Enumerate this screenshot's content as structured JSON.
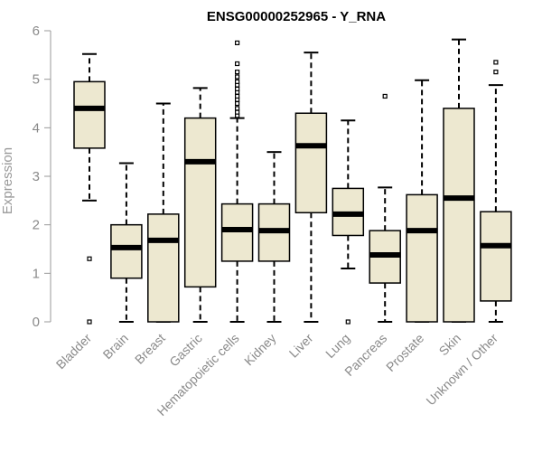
{
  "chart_data": {
    "type": "boxplot",
    "title": "ENSG00000252965 - Y_RNA",
    "xlabel": "",
    "ylabel": "Expression",
    "ylim": [
      0,
      6
    ],
    "yticks": [
      0,
      1,
      2,
      3,
      4,
      5,
      6
    ],
    "grid": false,
    "box_fill": "#ede8d0",
    "box_stroke": "#000000",
    "axis_color": "#999999",
    "categories": [
      "Bladder",
      "Brain",
      "Breast",
      "Gastric",
      "Hematopoietic cells",
      "Kidney",
      "Liver",
      "Lung",
      "Pancreas",
      "Prostate",
      "Skin",
      "Unknown / Other"
    ],
    "boxes": [
      {
        "min": 2.5,
        "q1": 3.58,
        "median": 4.4,
        "q3": 4.95,
        "max": 5.52,
        "outliers": [
          1.3,
          0.0
        ]
      },
      {
        "min": 0.0,
        "q1": 0.9,
        "median": 1.53,
        "q3": 2.0,
        "max": 3.27,
        "outliers": []
      },
      {
        "min": 0.0,
        "q1": 0.0,
        "median": 1.68,
        "q3": 2.22,
        "max": 4.5,
        "outliers": []
      },
      {
        "min": 0.0,
        "q1": 0.72,
        "median": 3.3,
        "q3": 4.2,
        "max": 4.82,
        "outliers": []
      },
      {
        "min": 0.0,
        "q1": 1.25,
        "median": 1.9,
        "q3": 2.43,
        "max": 4.2,
        "outliers": [
          4.25,
          4.32,
          4.4,
          4.5,
          4.58,
          4.65,
          4.73,
          4.8,
          4.88,
          4.95,
          5.05,
          5.15,
          5.32,
          5.75
        ]
      },
      {
        "min": 0.0,
        "q1": 1.25,
        "median": 1.88,
        "q3": 2.43,
        "max": 3.5,
        "outliers": []
      },
      {
        "min": 0.0,
        "q1": 2.25,
        "median": 3.63,
        "q3": 4.3,
        "max": 5.55,
        "outliers": []
      },
      {
        "min": 1.1,
        "q1": 1.78,
        "median": 2.22,
        "q3": 2.75,
        "max": 4.15,
        "outliers": [
          0.0
        ]
      },
      {
        "min": 0.0,
        "q1": 0.8,
        "median": 1.38,
        "q3": 1.88,
        "max": 2.77,
        "outliers": [
          4.65
        ]
      },
      {
        "min": 0.0,
        "q1": 0.0,
        "median": 1.88,
        "q3": 2.62,
        "max": 4.98,
        "outliers": []
      },
      {
        "min": 0.0,
        "q1": 0.0,
        "median": 2.55,
        "q3": 4.4,
        "max": 5.82,
        "outliers": []
      },
      {
        "min": 0.0,
        "q1": 0.43,
        "median": 1.57,
        "q3": 2.27,
        "max": 4.88,
        "outliers": [
          5.15,
          5.35
        ]
      }
    ]
  }
}
